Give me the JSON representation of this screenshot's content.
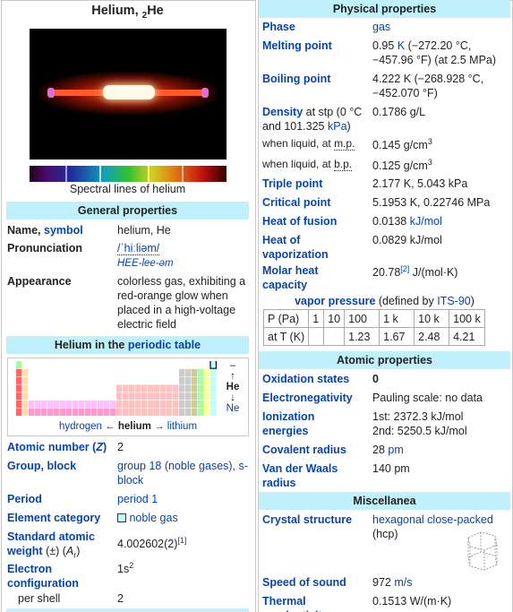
{
  "left": {
    "title": {
      "name": "Helium,",
      "atomic_number": "2",
      "symbol": "He"
    },
    "image_caption": "Spectral lines of helium",
    "general_properties": {
      "header": "General properties",
      "rows": [
        {
          "label": [
            "Name,",
            "symbol"
          ],
          "value": [
            "helium, He"
          ]
        },
        {
          "label": [
            "Pronunciation"
          ],
          "value": [
            "/ˈhiːliəm/",
            "HEE-lee-əm"
          ]
        },
        {
          "label": [
            "Appearance"
          ],
          "value": [
            "colorless gas, exhibiting a red-orange glow when placed in a high-voltage electric field"
          ]
        }
      ]
    },
    "periodic_table": {
      "header": [
        "Helium in the",
        "periodic table"
      ],
      "above": "–",
      "up_arrow": "↑",
      "symbol": "He",
      "down_arrow": "↓",
      "below": "Ne",
      "neighbors": [
        "hydrogen",
        "←",
        "helium",
        "→",
        "lithium"
      ]
    },
    "rows": [
      {
        "label": [
          "Atomic number",
          "(",
          "Z",
          ")"
        ],
        "value": [
          "2"
        ]
      },
      {
        "label": [
          "Group, block"
        ],
        "value": [
          "group 18 (noble gases), s-block"
        ]
      },
      {
        "label": [
          "Period"
        ],
        "value": [
          "period 1"
        ]
      },
      {
        "label": [
          "Element category"
        ],
        "value": [
          "noble gas"
        ]
      },
      {
        "label": [
          "Standard atomic weight",
          "(±)",
          "(",
          "A",
          "r",
          ")"
        ],
        "value": [
          "4.002602(2)",
          "[1]"
        ]
      },
      {
        "label": [
          "Electron configuration"
        ],
        "value": [
          "1s",
          "2"
        ]
      },
      {
        "label": [
          "per shell"
        ],
        "value": [
          "2"
        ]
      }
    ]
  },
  "right": {
    "physical_properties": {
      "header": "Physical properties",
      "rows": [
        {
          "label": [
            "Phase"
          ],
          "value": [
            "gas"
          ]
        },
        {
          "label": [
            "Melting point"
          ],
          "value": [
            "0.95",
            "K",
            "(−272.20 °C, −457.96 °F) (at 2.5 MPa)"
          ]
        },
        {
          "label": [
            "Boiling point"
          ],
          "value": [
            "4.222 K (−268.928 °C, −452.070 °F)"
          ]
        },
        {
          "label": [
            "Density",
            "at stp (0 °C and 101.325",
            "kPa",
            ")"
          ],
          "value": [
            "0.1786 g/L"
          ]
        },
        {
          "label": [
            "when liquid, at",
            "m.p."
          ],
          "value": [
            "0.145 g/cm",
            "3"
          ]
        },
        {
          "label": [
            "when liquid, at",
            "b.p."
          ],
          "value": [
            "0.125 g/cm",
            "3"
          ]
        },
        {
          "label": [
            "Triple point"
          ],
          "value": [
            "2.177 K, 5.043 kPa"
          ]
        },
        {
          "label": [
            "Critical point"
          ],
          "value": [
            "5.1953 K, 0.22746 MPa"
          ]
        },
        {
          "label": [
            "Heat of fusion"
          ],
          "value": [
            "0.0138",
            "kJ/mol"
          ]
        },
        {
          "label": [
            "Heat of vaporization"
          ],
          "value": [
            "0.0829 kJ/mol"
          ]
        },
        {
          "label": [
            "Molar heat capacity"
          ],
          "value": [
            "20.78",
            "[2]",
            "J/(mol·K)"
          ]
        }
      ]
    },
    "vapor_pressure": {
      "title": [
        "vapor pressure",
        "(defined by",
        "ITS-90",
        ")"
      ],
      "rows": [
        [
          "P (Pa)",
          "1",
          "10",
          "100",
          "1 k",
          "10 k",
          "100 k"
        ],
        [
          "at T (K)",
          null,
          null,
          "1.23",
          "1.67",
          "2.48",
          "4.21"
        ]
      ]
    },
    "atomic_properties": {
      "header": "Atomic properties",
      "rows": [
        {
          "label": [
            "Oxidation states"
          ],
          "value": [
            "0"
          ]
        },
        {
          "label": [
            "Electronegativity"
          ],
          "value": [
            "Pauling scale: no data"
          ]
        },
        {
          "label": [
            "Ionization energies"
          ],
          "value": [
            "1st: 2372.3 kJ/mol",
            "2nd: 5250.5 kJ/mol"
          ]
        },
        {
          "label": [
            "Covalent radius"
          ],
          "value": [
            "28",
            "pm"
          ]
        },
        {
          "label": [
            "Van der Waals radius"
          ],
          "value": [
            "140 pm"
          ]
        }
      ]
    },
    "miscellanea": {
      "header": "Miscellanea",
      "rows": [
        {
          "label": [
            "Crystal structure"
          ],
          "value": [
            "hexagonal close-packed",
            "(hcp)"
          ]
        },
        {
          "label": [
            "Speed of sound"
          ],
          "value": [
            "972",
            "m/s"
          ]
        },
        {
          "label": [
            "Thermal conductivity"
          ],
          "value": [
            "0.1513 W/(m·K)"
          ]
        }
      ]
    }
  }
}
